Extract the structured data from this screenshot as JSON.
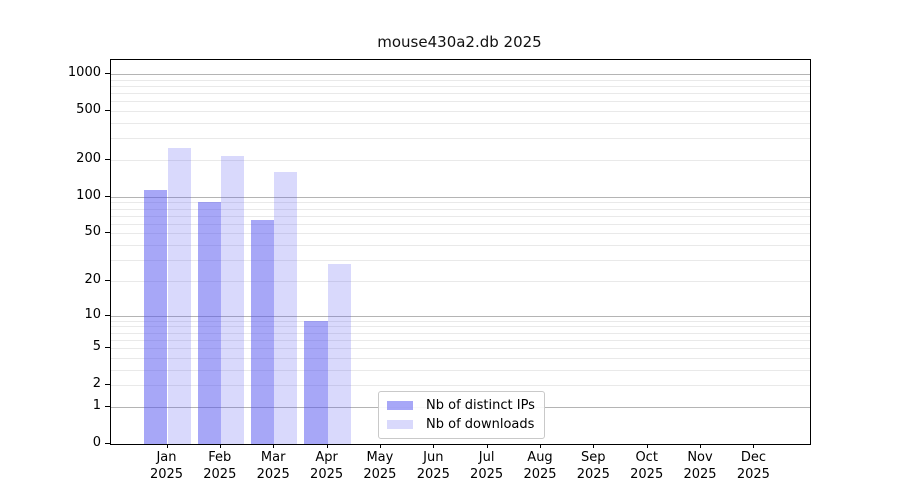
{
  "chart_data": {
    "type": "bar",
    "title": "mouse430a2.db 2025",
    "categories": [
      "Jan 2025",
      "Feb 2025",
      "Mar 2025",
      "Apr 2025",
      "May 2025",
      "Jun 2025",
      "Jul 2025",
      "Aug 2025",
      "Sep 2025",
      "Oct 2025",
      "Nov 2025",
      "Dec 2025"
    ],
    "series": [
      {
        "name": "Nb of distinct IPs",
        "values": [
          113,
          90,
          65,
          9,
          0,
          0,
          0,
          0,
          0,
          0,
          0,
          0
        ],
        "color": "#5050f0",
        "css_color": "rgba(80,80,240,0.50)"
      },
      {
        "name": "Nb of downloads",
        "values": [
          250,
          215,
          160,
          28,
          0,
          0,
          0,
          0,
          0,
          0,
          0,
          0
        ],
        "color": "#5050f0",
        "css_color": "rgba(80,80,240,0.22)"
      }
    ],
    "yscale": "log1p",
    "yticks": [
      0,
      1,
      2,
      5,
      10,
      20,
      50,
      100,
      200,
      500,
      1000
    ],
    "ylim": [
      0,
      1295
    ],
    "grid": "on",
    "grid_major_at": [
      1,
      10,
      100,
      1000
    ],
    "grid_minor_multiples": [
      2,
      3,
      4,
      5,
      6,
      7,
      8,
      9
    ],
    "legend_position": "lower-center",
    "colors": {
      "bar_base": "#5050f0",
      "distinct_ips_rendered": "#abaaf6",
      "downloads_rendered": "#dcdbfa",
      "grid_major": "#b4b4b4",
      "grid_minor": "#e9e9e9"
    }
  }
}
